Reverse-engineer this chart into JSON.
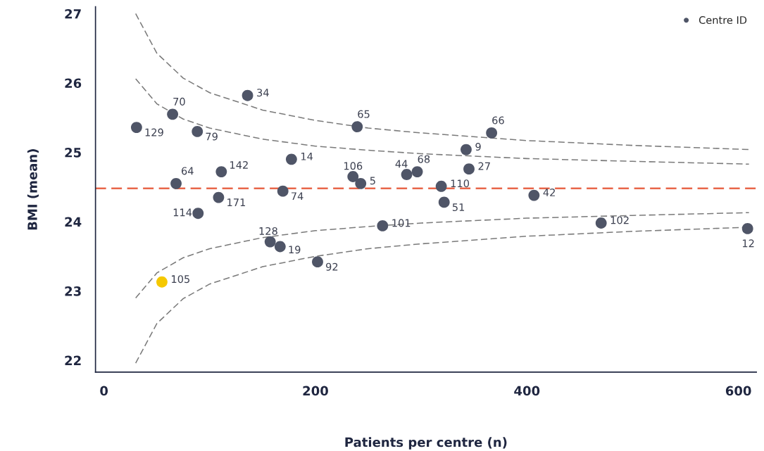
{
  "chart_data": {
    "type": "scatter",
    "xlabel": "Patients per centre (n)",
    "ylabel": "BMI (mean)",
    "xlim": [
      -8,
      617
    ],
    "ylim": [
      21.83,
      27.1
    ],
    "xticks": [
      0,
      200,
      400,
      600
    ],
    "yticks": [
      22,
      23,
      24,
      25,
      26,
      27
    ],
    "grid": false,
    "legend": "top right",
    "marker": "circle",
    "series": [
      {
        "name": "Centre ID",
        "color": "#4f5567",
        "colors": [
          "#4f5567",
          "#4f5567",
          "#4f5567",
          "#4f5567",
          "#4f5567",
          "#4f5567",
          "#4f5567",
          "#4f5567",
          "#4f5567",
          "#4f5567",
          "#4f5567",
          "#4f5567",
          "#4f5567",
          "#4f5567",
          "#4f5567",
          "#4f5567",
          "#4f5567",
          "#4f5567",
          "#4f5567",
          "#4f5567",
          "#4f5567",
          "#4f5567",
          "#4f5567",
          "#4f5567",
          "#4f5567",
          "#4f5567",
          "#4f5567",
          "#f5c800"
        ],
        "x": [
          30.8,
          64.9,
          88.3,
          135.8,
          239.5,
          366.6,
          342.5,
          177.3,
          111,
          68.2,
          235.5,
          242.8,
          286.3,
          296.3,
          345.2,
          319,
          169.2,
          108.4,
          321.7,
          406.7,
          89,
          263.5,
          470.2,
          608.7,
          157.2,
          166.6,
          202,
          54.8
        ],
        "values": [
          25.36,
          25.55,
          25.3,
          25.82,
          25.37,
          25.28,
          25.04,
          24.9,
          24.72,
          24.55,
          24.65,
          24.55,
          24.68,
          24.72,
          24.76,
          24.51,
          24.44,
          24.35,
          24.28,
          24.38,
          24.12,
          23.94,
          23.98,
          23.9,
          23.71,
          23.64,
          23.42,
          23.13
        ]
      },
      {
        "type": "line",
        "marker": "none",
        "line_style": "dashed",
        "color": "#7a7a7a",
        "x": [
          30,
          50,
          75,
          100,
          150,
          200,
          250,
          300,
          400,
          500,
          610
        ],
        "values": [
          27.0,
          26.43,
          26.07,
          25.86,
          25.61,
          25.46,
          25.35,
          25.28,
          25.17,
          25.1,
          25.04
        ]
      },
      {
        "type": "line",
        "marker": "none",
        "line_style": "dashed",
        "color": "#7a7a7a",
        "x": [
          30,
          50,
          75,
          100,
          150,
          200,
          250,
          300,
          400,
          500,
          610
        ],
        "values": [
          21.96,
          22.53,
          22.89,
          23.1,
          23.35,
          23.5,
          23.61,
          23.68,
          23.79,
          23.86,
          23.92
        ]
      },
      {
        "type": "line",
        "marker": "none",
        "line_style": "dashed",
        "color": "#7a7a7a",
        "x": [
          30,
          50,
          75,
          100,
          150,
          200,
          250,
          300,
          400,
          500,
          610
        ],
        "values": [
          26.06,
          25.7,
          25.48,
          25.35,
          25.19,
          25.09,
          25.03,
          24.98,
          24.91,
          24.87,
          24.83
        ]
      },
      {
        "type": "line",
        "marker": "none",
        "line_style": "dashed",
        "color": "#7a7a7a",
        "x": [
          30,
          50,
          75,
          100,
          150,
          200,
          250,
          300,
          400,
          500,
          610
        ],
        "values": [
          22.9,
          23.26,
          23.48,
          23.61,
          23.77,
          23.87,
          23.93,
          23.98,
          24.05,
          24.09,
          24.13
        ]
      }
    ],
    "ref_lines": [
      {
        "axis": "y",
        "value": 24.48,
        "color": "#e8674a",
        "line_style": "dashed"
      }
    ],
    "annotations": [
      {
        "text": "129",
        "x": 30.8,
        "y": 25.36
      },
      {
        "text": "70",
        "x": 64.9,
        "y": 25.55
      },
      {
        "text": "79",
        "x": 88.3,
        "y": 25.3
      },
      {
        "text": "34",
        "x": 135.8,
        "y": 25.82
      },
      {
        "text": "65",
        "x": 239.5,
        "y": 25.37
      },
      {
        "text": "66",
        "x": 366.6,
        "y": 25.28
      },
      {
        "text": "9",
        "x": 342.5,
        "y": 25.04
      },
      {
        "text": "14",
        "x": 177.3,
        "y": 24.9
      },
      {
        "text": "142",
        "x": 111,
        "y": 24.72
      },
      {
        "text": "64",
        "x": 68.2,
        "y": 24.55
      },
      {
        "text": "106",
        "x": 235.5,
        "y": 24.65
      },
      {
        "text": "5",
        "x": 242.8,
        "y": 24.55
      },
      {
        "text": "44",
        "x": 286.3,
        "y": 24.68
      },
      {
        "text": "68",
        "x": 296.3,
        "y": 24.72
      },
      {
        "text": "27",
        "x": 345.2,
        "y": 24.76
      },
      {
        "text": "110",
        "x": 319,
        "y": 24.51
      },
      {
        "text": "74",
        "x": 169.2,
        "y": 24.44
      },
      {
        "text": "171",
        "x": 108.4,
        "y": 24.35
      },
      {
        "text": "51",
        "x": 321.7,
        "y": 24.28
      },
      {
        "text": "42",
        "x": 406.7,
        "y": 24.38
      },
      {
        "text": "114",
        "x": 89,
        "y": 24.12
      },
      {
        "text": "101",
        "x": 263.5,
        "y": 23.94
      },
      {
        "text": "102",
        "x": 470.2,
        "y": 23.98
      },
      {
        "text": "12",
        "x": 608.7,
        "y": 23.9
      },
      {
        "text": "128",
        "x": 157.2,
        "y": 23.71
      },
      {
        "text": "19",
        "x": 166.6,
        "y": 23.64
      },
      {
        "text": "92",
        "x": 202,
        "y": 23.42
      },
      {
        "text": "105",
        "x": 54.8,
        "y": 23.13
      }
    ]
  }
}
